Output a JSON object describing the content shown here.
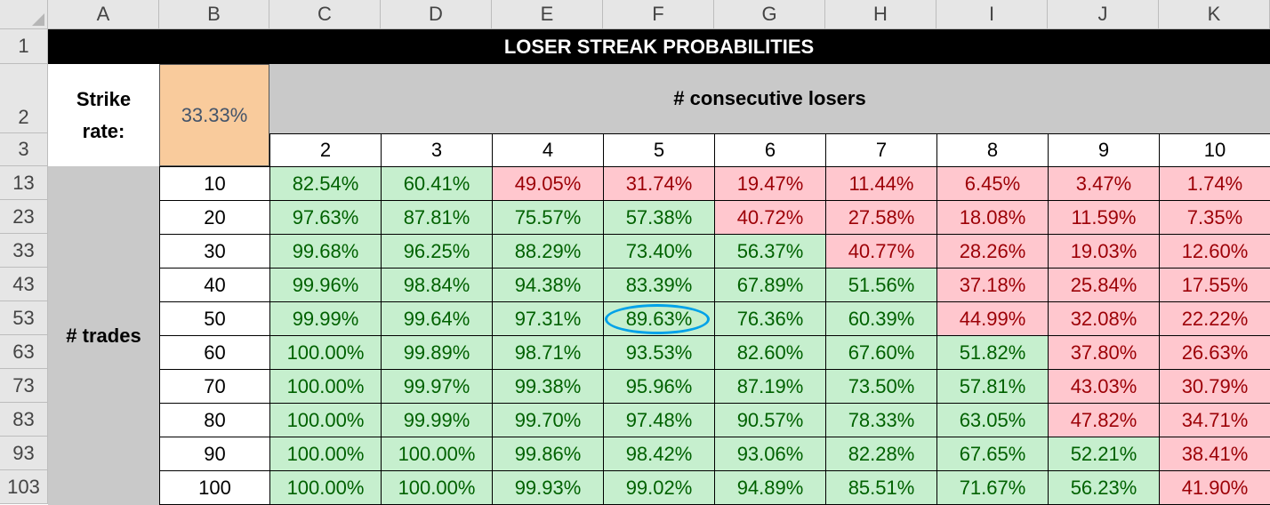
{
  "column_headers": [
    "A",
    "B",
    "C",
    "D",
    "E",
    "F",
    "G",
    "H",
    "I",
    "J",
    "K"
  ],
  "row_headers": [
    "1",
    "2",
    "3",
    "13",
    "23",
    "33",
    "43",
    "53",
    "63",
    "73",
    "83",
    "93",
    "103"
  ],
  "title": "LOSER STREAK PROBABILITIES",
  "strike_rate": {
    "label_line1": "Strike",
    "label_line2": "rate:",
    "value": "33.33%"
  },
  "consecutive_losers_label": "# consecutive losers",
  "consecutive_counts": [
    "2",
    "3",
    "4",
    "5",
    "6",
    "7",
    "8",
    "9",
    "10"
  ],
  "trades_label": "# trades",
  "trade_counts": [
    "10",
    "20",
    "30",
    "40",
    "50",
    "60",
    "70",
    "80",
    "90",
    "100"
  ],
  "table": [
    [
      "82.54%",
      "60.41%",
      "49.05%",
      "31.74%",
      "19.47%",
      "11.44%",
      "6.45%",
      "3.47%",
      "1.74%"
    ],
    [
      "97.63%",
      "87.81%",
      "75.57%",
      "57.38%",
      "40.72%",
      "27.58%",
      "18.08%",
      "11.59%",
      "7.35%"
    ],
    [
      "99.68%",
      "96.25%",
      "88.29%",
      "73.40%",
      "56.37%",
      "40.77%",
      "28.26%",
      "19.03%",
      "12.60%"
    ],
    [
      "99.96%",
      "98.84%",
      "94.38%",
      "83.39%",
      "67.89%",
      "51.56%",
      "37.18%",
      "25.84%",
      "17.55%"
    ],
    [
      "99.99%",
      "99.64%",
      "97.31%",
      "89.63%",
      "76.36%",
      "60.39%",
      "44.99%",
      "32.08%",
      "22.22%"
    ],
    [
      "100.00%",
      "99.89%",
      "98.71%",
      "93.53%",
      "82.60%",
      "67.60%",
      "51.82%",
      "37.80%",
      "26.63%"
    ],
    [
      "100.00%",
      "99.97%",
      "99.38%",
      "95.96%",
      "87.19%",
      "73.50%",
      "57.81%",
      "43.03%",
      "30.79%"
    ],
    [
      "100.00%",
      "99.99%",
      "99.70%",
      "97.48%",
      "90.57%",
      "78.33%",
      "63.05%",
      "47.82%",
      "34.71%"
    ],
    [
      "100.00%",
      "100.00%",
      "99.86%",
      "98.42%",
      "93.06%",
      "82.28%",
      "67.65%",
      "52.21%",
      "38.41%"
    ],
    [
      "100.00%",
      "100.00%",
      "99.93%",
      "99.02%",
      "94.89%",
      "85.51%",
      "71.67%",
      "56.23%",
      "41.90%"
    ]
  ],
  "highlighted_cell": {
    "row": 4,
    "col": 3
  },
  "colors": {
    "green_bg": "#c6efce",
    "green_text": "#006100",
    "red_bg": "#ffc7ce",
    "red_text": "#9c0006",
    "highlight_ring": "#00a2e8"
  },
  "threshold_percent": 50
}
